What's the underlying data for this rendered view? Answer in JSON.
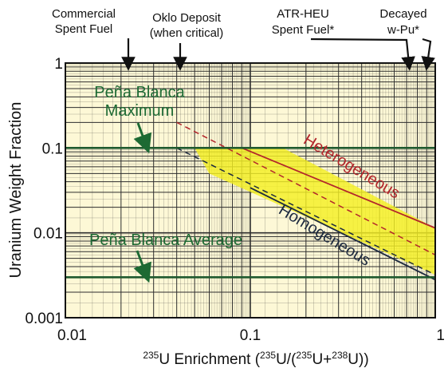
{
  "chart_data": {
    "type": "line",
    "x_scale": "log",
    "y_scale": "log",
    "xlim": [
      0.01,
      1
    ],
    "ylim": [
      0.001,
      1
    ],
    "grid": true,
    "xlabel": {
      "prefix_sup": "235",
      "prefix_text": "U Enrichment (",
      "num_sup": "235",
      "num_text": "U/(",
      "den1_sup": "235",
      "den1_text": "U+",
      "den2_sup": "238",
      "den2_text": "U))"
    },
    "ylabel": "Uranium Weight Fraction",
    "x_ticks": [
      "0.01",
      "0.1",
      "1"
    ],
    "y_ticks": [
      "1",
      "0.1",
      "0.01",
      "0.001"
    ],
    "top_annotations": [
      {
        "lines": [
          "Commercial",
          "Spent Fuel"
        ],
        "x": 0.022
      },
      {
        "lines": [
          "Oklo Deposit",
          "(when critical)"
        ],
        "x": 0.04
      },
      {
        "lines": [
          "ATR-HEU",
          "Spent Fuel*"
        ],
        "x": 0.7
      },
      {
        "lines": [
          "Decayed",
          "w-Pu*"
        ],
        "x": 0.93
      }
    ],
    "hlines": [
      {
        "name": "Peña Blanca Maximum",
        "y": 0.1,
        "color": "#1f5a2f"
      },
      {
        "name": "Peña Blanca Average",
        "y": 0.003,
        "color": "#1f5a2f"
      }
    ],
    "labels": {
      "pena_max": [
        "Peña Blanca",
        "Maximum"
      ],
      "pena_avg": "Peña Blanca Average",
      "heterogeneous": "Heterogeneous",
      "homogeneous": "Homogeneous"
    },
    "series": [
      {
        "name": "Heterogeneous",
        "style": "solid",
        "color": "#b3262b",
        "x": [
          0.09,
          1
        ],
        "y": [
          0.1,
          0.0114
        ]
      },
      {
        "name": "Heterogeneous",
        "style": "dashed",
        "color": "#b3262b",
        "x": [
          0.04,
          1
        ],
        "y": [
          0.2,
          0.0055
        ]
      },
      {
        "name": "Homogeneous",
        "style": "solid",
        "color": "#1d2a3f",
        "x": [
          0.1,
          1
        ],
        "y": [
          0.034,
          0.0028
        ]
      },
      {
        "name": "Homogeneous",
        "style": "dashed",
        "color": "#1d2a3f",
        "x": [
          0.04,
          1
        ],
        "y": [
          0.1,
          0.0032
        ]
      }
    ],
    "region": {
      "color": "#f4ef22",
      "points": [
        [
          0.05,
          0.1
        ],
        [
          0.15,
          0.1
        ],
        [
          1,
          0.0114
        ],
        [
          1,
          0.0032
        ],
        [
          0.06,
          0.05
        ]
      ]
    },
    "colors": {
      "background": "#fdf8d6",
      "grid": "#2d2d2d",
      "axis": "#111111",
      "label_green": "#1d6a33",
      "annotation": "#111111"
    }
  }
}
